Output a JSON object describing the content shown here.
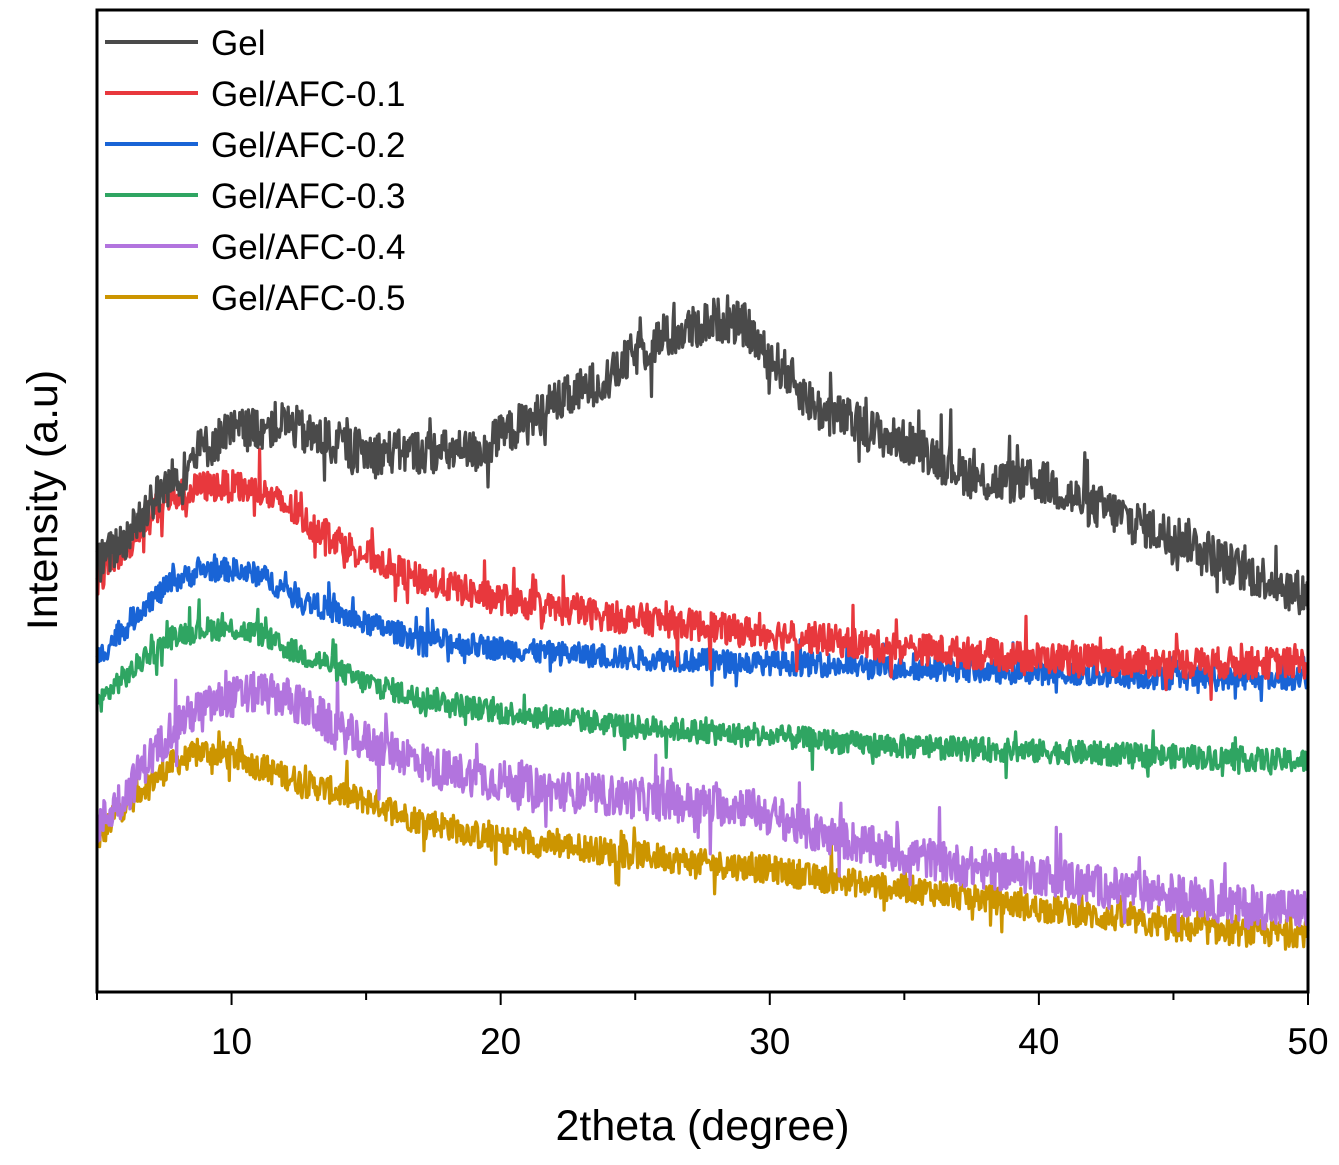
{
  "chart_data": {
    "type": "line",
    "title": "",
    "xlabel": "2theta (degree)",
    "ylabel": "Intensity (a.u)",
    "xlim": [
      5,
      50
    ],
    "ylim": [
      0,
      100
    ],
    "x_ticks": [
      10,
      20,
      30,
      40,
      50
    ],
    "x_minor_ticks": [
      5,
      15,
      25,
      35,
      45
    ],
    "y_ticks_shown": false,
    "grid": false,
    "legend_position": "top-left",
    "note": "Values are approximate smoothed trend points in arbitrary units (0 = bottom of plot frame, 100 = top); the real traces are noisy XRD patterns around these trends.",
    "series": [
      {
        "name": "Gel",
        "color": "#4a4a4a",
        "noise": 4.5,
        "x": [
          5,
          6,
          7,
          8,
          9,
          10,
          11,
          12,
          13,
          15,
          17,
          19,
          21,
          22,
          24,
          25,
          26,
          27,
          28,
          29,
          30,
          32,
          35,
          38,
          40,
          42,
          45,
          48,
          50
        ],
        "y": [
          43.5,
          46,
          50,
          52.5,
          55.5,
          57,
          57.5,
          58,
          56.5,
          55,
          55,
          55,
          58,
          60,
          62.5,
          65,
          66.5,
          67.5,
          68.5,
          68,
          64.5,
          59,
          56,
          52,
          52,
          49.5,
          46.5,
          42.5,
          40.5
        ]
      },
      {
        "name": "Gel/AFC-0.1",
        "color": "#e8383d",
        "noise": 3.2,
        "x": [
          5,
          6,
          7,
          8,
          9,
          10,
          11,
          12,
          13,
          15,
          17,
          20,
          22,
          25,
          30,
          35,
          40,
          45,
          50
        ],
        "y": [
          42,
          45,
          49,
          50.5,
          51.5,
          51.5,
          51,
          49.5,
          47.5,
          44.5,
          42,
          40,
          39,
          38,
          36.5,
          35,
          34,
          33.5,
          33.5
        ]
      },
      {
        "name": "Gel/AFC-0.2",
        "color": "#1964d6",
        "noise": 2.4,
        "x": [
          5,
          6,
          7,
          8,
          9,
          10,
          11,
          12,
          13,
          15,
          17,
          20,
          22,
          25,
          30,
          35,
          40,
          45,
          50
        ],
        "y": [
          34,
          37,
          40,
          42,
          43,
          43,
          42.5,
          41,
          39.5,
          37.5,
          36,
          35,
          34.5,
          34,
          33.5,
          33,
          32.5,
          32,
          32
        ]
      },
      {
        "name": "Gel/AFC-0.3",
        "color": "#2fa562",
        "noise": 2.4,
        "x": [
          5,
          6,
          7,
          8,
          9,
          10,
          11,
          12,
          13,
          15,
          17,
          20,
          22,
          25,
          30,
          35,
          40,
          45,
          50
        ],
        "y": [
          29.5,
          32,
          34.5,
          36.5,
          37,
          37,
          36.5,
          35,
          34,
          31.5,
          30,
          28.5,
          28,
          27,
          26,
          25,
          24.5,
          24,
          23.5
        ]
      },
      {
        "name": "Gel/AFC-0.4",
        "color": "#b274de",
        "noise": 4.2,
        "x": [
          5,
          6,
          7,
          8,
          9,
          10,
          11,
          12,
          13,
          14,
          16,
          18,
          20,
          22,
          24,
          26,
          28,
          29,
          30,
          32,
          35,
          38,
          40,
          43,
          45,
          48,
          50
        ],
        "y": [
          17,
          20,
          24,
          27.5,
          29,
          30,
          30.5,
          30,
          28.5,
          26.5,
          24.5,
          22.5,
          21.5,
          20.5,
          20,
          19.5,
          19,
          19,
          18,
          16,
          14,
          12.5,
          12,
          10.5,
          10,
          8.5,
          8.5
        ]
      },
      {
        "name": "Gel/AFC-0.5",
        "color": "#cc9500",
        "noise": 2.8,
        "x": [
          5,
          6,
          7,
          8,
          9,
          10,
          11,
          12,
          13,
          15,
          17,
          20,
          22,
          25,
          28,
          30,
          32,
          35,
          38,
          40,
          43,
          45,
          48,
          50
        ],
        "y": [
          15.5,
          19,
          21.5,
          23.5,
          24.5,
          24,
          23,
          22,
          21,
          19.5,
          17.5,
          15.5,
          15,
          14,
          13,
          12.5,
          11.5,
          10.5,
          9.5,
          8.5,
          7.5,
          6.5,
          6,
          6
        ]
      }
    ]
  }
}
